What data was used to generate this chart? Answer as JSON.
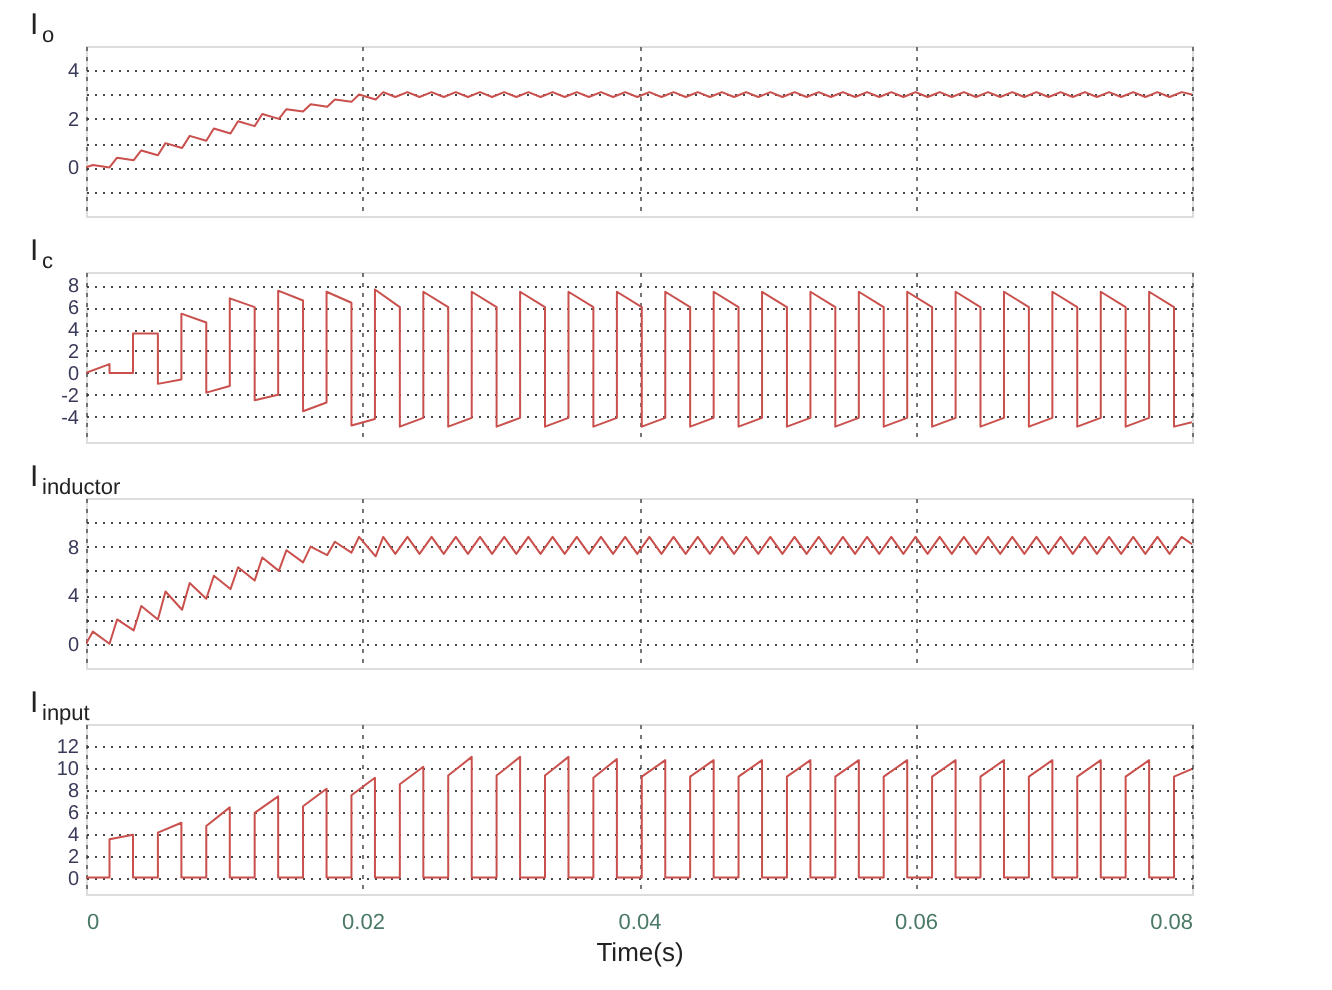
{
  "chart_data": [
    {
      "type": "line",
      "title": "I$_{o}$",
      "line_style": "solid",
      "grid": true,
      "tick_labels": "y",
      "xlim": [
        0,
        0.08
      ],
      "xticks": [
        0,
        0.02,
        0.04,
        0.06,
        0.08
      ],
      "ylim": [
        -2,
        5
      ],
      "yticks": [
        {
          "value": -1,
          "label": null
        },
        0,
        {
          "value": 1,
          "label": null
        },
        2,
        {
          "value": 3,
          "label": null
        },
        4
      ],
      "x": [
        0,
        0.0005,
        0.0017,
        0.00225,
        0.00345,
        0.004,
        0.0052,
        0.00575,
        0.00695,
        0.0075,
        0.0087,
        0.00925,
        0.01045,
        0.011,
        0.0122,
        0.01275,
        0.01395,
        0.0145,
        0.0157,
        0.01625,
        0.01745,
        0.018,
        0.0192,
        0.01975,
        0.02095,
        0.0215,
        0.022375,
        0.02325,
        0.024125,
        0.025,
        0.025875,
        0.02675,
        0.027625,
        0.0285,
        0.029375,
        0.03025,
        0.031125,
        0.032,
        0.032875,
        0.03375,
        0.034625,
        0.0355,
        0.036375,
        0.03725,
        0.038125,
        0.039,
        0.039875,
        0.04075,
        0.041625,
        0.0425,
        0.043375,
        0.04425,
        0.045125,
        0.046,
        0.046875,
        0.04775,
        0.048625,
        0.0495,
        0.050375,
        0.05125,
        0.052125,
        0.053,
        0.053875,
        0.05475,
        0.055625,
        0.0565,
        0.057375,
        0.05825,
        0.059125,
        0.06,
        0.060875,
        0.06175,
        0.062625,
        0.0635,
        0.064375,
        0.06525,
        0.066125,
        0.067,
        0.067875,
        0.06875,
        0.069625,
        0.0705,
        0.071375,
        0.07225,
        0.073125,
        0.074,
        0.074875,
        0.07575,
        0.076625,
        0.0775,
        0.078375,
        0.07925,
        0.08
      ],
      "series": [
        {
          "color": "#c9504c",
          "values": [
            0,
            0.1,
            0.0,
            0.4,
            0.3,
            0.7,
            0.5,
            1.0,
            0.8,
            1.3,
            1.1,
            1.6,
            1.4,
            1.9,
            1.7,
            2.2,
            2.0,
            2.4,
            2.3,
            2.6,
            2.5,
            2.8,
            2.7,
            3.0,
            2.8,
            3.1,
            2.9,
            3.1,
            2.9,
            3.1,
            2.9,
            3.1,
            2.9,
            3.1,
            2.9,
            3.1,
            2.9,
            3.1,
            2.9,
            3.1,
            2.9,
            3.1,
            2.9,
            3.1,
            2.9,
            3.1,
            2.9,
            3.1,
            2.9,
            3.1,
            2.9,
            3.1,
            2.9,
            3.1,
            2.9,
            3.1,
            2.9,
            3.1,
            2.9,
            3.1,
            2.9,
            3.1,
            2.9,
            3.1,
            2.9,
            3.1,
            2.9,
            3.1,
            2.9,
            3.1,
            2.9,
            3.1,
            2.9,
            3.1,
            2.9,
            3.1,
            2.9,
            3.1,
            2.9,
            3.1,
            2.9,
            3.1,
            2.9,
            3.1,
            2.9,
            3.1,
            2.9,
            3.1,
            2.9,
            3.1,
            2.9,
            3.1,
            3.0
          ]
        }
      ]
    },
    {
      "type": "line",
      "title": "I$_{c}$",
      "line_style": "solid",
      "grid": true,
      "tick_labels": "y",
      "xlim": [
        0,
        0.08
      ],
      "xticks": [
        0,
        0.02,
        0.04,
        0.06,
        0.08
      ],
      "ylim": [
        -6.3,
        9.2
      ],
      "yticks": [
        -4,
        -2,
        0,
        2,
        4,
        6,
        8
      ],
      "x": [
        0,
        0.0017,
        0.0017,
        0.0034,
        0.0034,
        0.0052,
        0.0052,
        0.0069,
        0.0069,
        0.0087,
        0.0087,
        0.0104,
        0.0104,
        0.0122,
        0.0122,
        0.0139,
        0.0139,
        0.0157,
        0.0157,
        0.0174,
        0.0174,
        0.0192,
        0.0192,
        0.0209,
        0.0209,
        0.0227,
        0.0227,
        0.0244,
        0.0244,
        0.0262,
        0.0262,
        0.0279,
        0.0279,
        0.0297,
        0.0297,
        0.0314,
        0.0314,
        0.0332,
        0.0332,
        0.0349,
        0.0349,
        0.0367,
        0.0367,
        0.0384,
        0.0384,
        0.0402,
        0.0402,
        0.0419,
        0.0419,
        0.0437,
        0.0437,
        0.0454,
        0.0454,
        0.0472,
        0.0472,
        0.0489,
        0.0489,
        0.0507,
        0.0507,
        0.0524,
        0.0524,
        0.0542,
        0.0542,
        0.0559,
        0.0559,
        0.0577,
        0.0577,
        0.0594,
        0.0594,
        0.0612,
        0.0612,
        0.0629,
        0.0629,
        0.0647,
        0.0647,
        0.0664,
        0.0664,
        0.0682,
        0.0682,
        0.0699,
        0.0699,
        0.0717,
        0.0717,
        0.0734,
        0.0734,
        0.0752,
        0.0752,
        0.0769,
        0.0769,
        0.0787,
        0.0787,
        0.08
      ],
      "series": [
        {
          "color": "#c9504c",
          "values": [
            0,
            0.8,
            0,
            0,
            3.6,
            3.6,
            -1.0,
            -0.6,
            5.4,
            4.6,
            -1.8,
            -1.2,
            6.8,
            6.0,
            -2.5,
            -2.0,
            7.5,
            6.6,
            -3.5,
            -2.7,
            7.4,
            6.4,
            -4.8,
            -4.2,
            7.6,
            6.0,
            -4.9,
            -4.1,
            7.4,
            6.0,
            -4.9,
            -4.1,
            7.4,
            6.0,
            -4.9,
            -4.1,
            7.4,
            6.0,
            -4.9,
            -4.1,
            7.4,
            6.0,
            -4.9,
            -4.1,
            7.4,
            6.0,
            -4.9,
            -4.1,
            7.4,
            6.0,
            -4.9,
            -4.1,
            7.4,
            6.0,
            -4.9,
            -4.1,
            7.4,
            6.0,
            -4.9,
            -4.1,
            7.4,
            6.0,
            -4.9,
            -4.1,
            7.4,
            6.0,
            -4.9,
            -4.1,
            7.4,
            6.0,
            -4.9,
            -4.1,
            7.4,
            6.0,
            -4.9,
            -4.1,
            7.4,
            6.0,
            -4.9,
            -4.1,
            7.4,
            6.0,
            -4.9,
            -4.1,
            7.4,
            6.0,
            -4.9,
            -4.1,
            7.4,
            6.0,
            -4.9,
            -4.5
          ]
        }
      ]
    },
    {
      "type": "line",
      "title": "I$_{inductor}$",
      "line_style": "solid",
      "grid": true,
      "tick_labels": "y",
      "xlim": [
        0,
        0.08
      ],
      "xticks": [
        0,
        0.02,
        0.04,
        0.06,
        0.08
      ],
      "ylim": [
        -2,
        12
      ],
      "yticks": [
        0,
        {
          "value": 2,
          "label": null
        },
        4,
        {
          "value": 6,
          "label": null
        },
        8,
        {
          "value": 10,
          "label": null
        }
      ],
      "x": [
        0,
        0.0005,
        0.0017,
        0.00225,
        0.00345,
        0.004,
        0.0052,
        0.00575,
        0.00695,
        0.0075,
        0.0087,
        0.00925,
        0.01045,
        0.011,
        0.0122,
        0.01275,
        0.01395,
        0.0145,
        0.0157,
        0.01625,
        0.01745,
        0.018,
        0.0192,
        0.01975,
        0.02095,
        0.0215,
        0.022375,
        0.02325,
        0.024125,
        0.025,
        0.025875,
        0.02675,
        0.027625,
        0.0285,
        0.029375,
        0.03025,
        0.031125,
        0.032,
        0.032875,
        0.03375,
        0.034625,
        0.0355,
        0.036375,
        0.03725,
        0.038125,
        0.039,
        0.039875,
        0.04075,
        0.041625,
        0.0425,
        0.043375,
        0.04425,
        0.045125,
        0.046,
        0.046875,
        0.04775,
        0.048625,
        0.0495,
        0.050375,
        0.05125,
        0.052125,
        0.053,
        0.053875,
        0.05475,
        0.055625,
        0.0565,
        0.057375,
        0.05825,
        0.059125,
        0.06,
        0.060875,
        0.06175,
        0.062625,
        0.0635,
        0.064375,
        0.06525,
        0.066125,
        0.067,
        0.067875,
        0.06875,
        0.069625,
        0.0705,
        0.071375,
        0.07225,
        0.073125,
        0.074,
        0.074875,
        0.07575,
        0.076625,
        0.0775,
        0.078375,
        0.07925,
        0.08
      ],
      "series": [
        {
          "color": "#c9504c",
          "values": [
            0,
            1.0,
            0.0,
            2.0,
            1.1,
            3.1,
            2.0,
            4.3,
            2.8,
            5.0,
            3.7,
            5.6,
            4.5,
            6.3,
            5.2,
            7.1,
            6.0,
            7.7,
            6.7,
            8.0,
            7.3,
            8.4,
            7.5,
            8.8,
            7.2,
            8.8,
            7.4,
            8.8,
            7.4,
            8.8,
            7.4,
            8.8,
            7.4,
            8.8,
            7.4,
            8.8,
            7.4,
            8.8,
            7.4,
            8.8,
            7.4,
            8.8,
            7.4,
            8.8,
            7.4,
            8.8,
            7.4,
            8.8,
            7.4,
            8.8,
            7.4,
            8.8,
            7.4,
            8.8,
            7.4,
            8.8,
            7.4,
            8.8,
            7.4,
            8.8,
            7.4,
            8.8,
            7.4,
            8.8,
            7.4,
            8.8,
            7.4,
            8.8,
            7.4,
            8.8,
            7.4,
            8.8,
            7.4,
            8.8,
            7.4,
            8.8,
            7.4,
            8.8,
            7.4,
            8.8,
            7.4,
            8.8,
            7.4,
            8.8,
            7.4,
            8.8,
            7.4,
            8.8,
            7.4,
            8.8,
            7.4,
            8.8,
            8.2
          ]
        }
      ]
    },
    {
      "type": "line",
      "title": "I$_{input}$",
      "xlabel": "Time(s)",
      "line_style": "solid",
      "grid": true,
      "xlim": [
        0,
        0.08
      ],
      "xticks": [
        0,
        0.02,
        0.04,
        0.06,
        0.08
      ],
      "ylim": [
        -1.5,
        14
      ],
      "yticks": [
        0,
        2,
        4,
        6,
        8,
        10,
        12
      ],
      "x": [
        0,
        0.0017,
        0.0017,
        0.0034,
        0.0034,
        0.0052,
        0.0052,
        0.0069,
        0.0069,
        0.0087,
        0.0087,
        0.0104,
        0.0104,
        0.0122,
        0.0122,
        0.0139,
        0.0139,
        0.0157,
        0.0157,
        0.0174,
        0.0174,
        0.0192,
        0.0192,
        0.0209,
        0.0209,
        0.0227,
        0.0227,
        0.0244,
        0.0244,
        0.0262,
        0.0262,
        0.0279,
        0.0279,
        0.0297,
        0.0297,
        0.0314,
        0.0314,
        0.0332,
        0.0332,
        0.0349,
        0.0349,
        0.0367,
        0.0367,
        0.0384,
        0.0384,
        0.0402,
        0.0402,
        0.0419,
        0.0419,
        0.0437,
        0.0437,
        0.0454,
        0.0454,
        0.0472,
        0.0472,
        0.0489,
        0.0489,
        0.0507,
        0.0507,
        0.0524,
        0.0524,
        0.0542,
        0.0542,
        0.0559,
        0.0559,
        0.0577,
        0.0577,
        0.0594,
        0.0594,
        0.0612,
        0.0612,
        0.0629,
        0.0629,
        0.0647,
        0.0647,
        0.0664,
        0.0664,
        0.0682,
        0.0682,
        0.0699,
        0.0699,
        0.0717,
        0.0717,
        0.0734,
        0.0734,
        0.0752,
        0.0752,
        0.0769,
        0.0769,
        0.0787,
        0.0787,
        0.08
      ],
      "series": [
        {
          "color": "#c9504c",
          "values": [
            0,
            0,
            3.5,
            3.9,
            0,
            0,
            4.1,
            5.0,
            0,
            0,
            4.7,
            6.4,
            0,
            0,
            5.9,
            7.4,
            0,
            0,
            6.5,
            8.1,
            0,
            0,
            7.5,
            9.1,
            0,
            0,
            8.5,
            10.1,
            0,
            0,
            9.3,
            11.0,
            0,
            0,
            9.3,
            11.0,
            0,
            0,
            9.3,
            11.0,
            0,
            0,
            9.1,
            10.8,
            0,
            0,
            9.2,
            10.7,
            0,
            0,
            9.2,
            10.7,
            0,
            0,
            9.2,
            10.7,
            0,
            0,
            9.2,
            10.7,
            0,
            0,
            9.2,
            10.7,
            0,
            0,
            9.2,
            10.7,
            0,
            0,
            9.2,
            10.7,
            0,
            0,
            9.2,
            10.7,
            0,
            0,
            9.2,
            10.7,
            0,
            0,
            9.2,
            10.7,
            0,
            0,
            9.2,
            10.7,
            0,
            0,
            9.2,
            9.9
          ]
        }
      ]
    }
  ]
}
